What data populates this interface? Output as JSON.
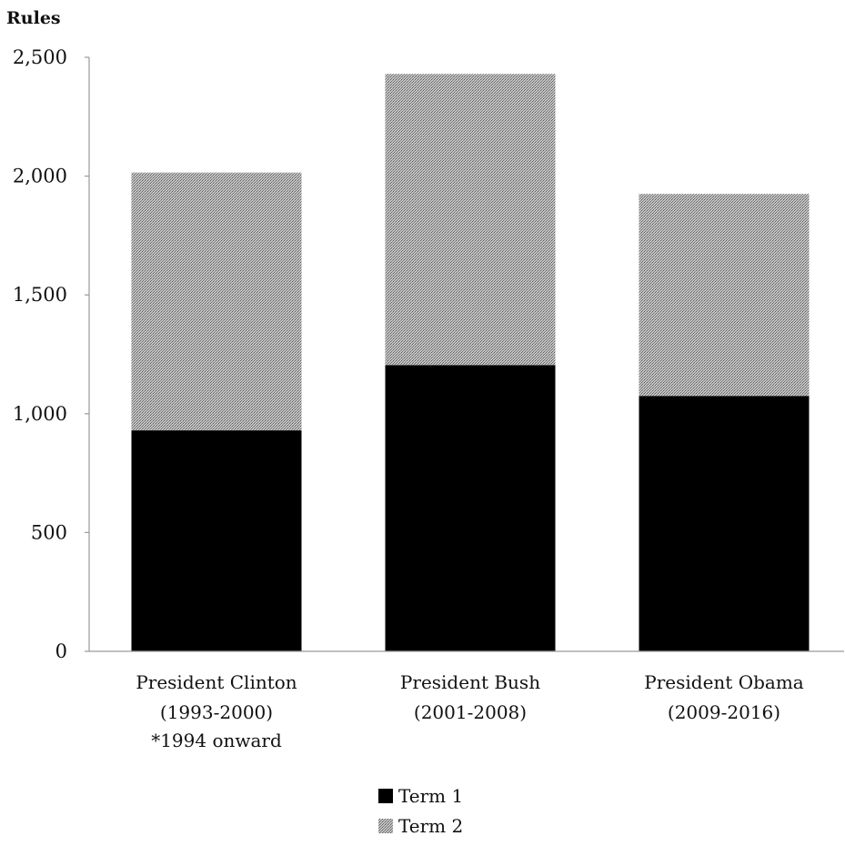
{
  "chart_data": {
    "type": "bar",
    "stacked": true,
    "ylabel": "Rules",
    "xlabel": "",
    "ylim": [
      0,
      2500
    ],
    "yticks": [
      0,
      500,
      1000,
      1500,
      2000,
      2500
    ],
    "ytick_labels": [
      "0",
      "500",
      "1,000",
      "1,500",
      "2,000",
      "2,500"
    ],
    "grid": false,
    "legend_position": "bottom-center",
    "categories": [
      [
        "President Clinton",
        "(1993-2000)",
        "*1994 onward"
      ],
      [
        "President Bush",
        "(2001-2008)"
      ],
      [
        "President Obama",
        "(2009-2016)"
      ]
    ],
    "series": [
      {
        "name": "Term 1",
        "color": "#000000",
        "pattern": "solid",
        "values": [
          930,
          1205,
          1075
        ]
      },
      {
        "name": "Term 2",
        "color": "#a8a8a8",
        "pattern": "stipple",
        "values": [
          1085,
          1225,
          850
        ]
      }
    ]
  }
}
